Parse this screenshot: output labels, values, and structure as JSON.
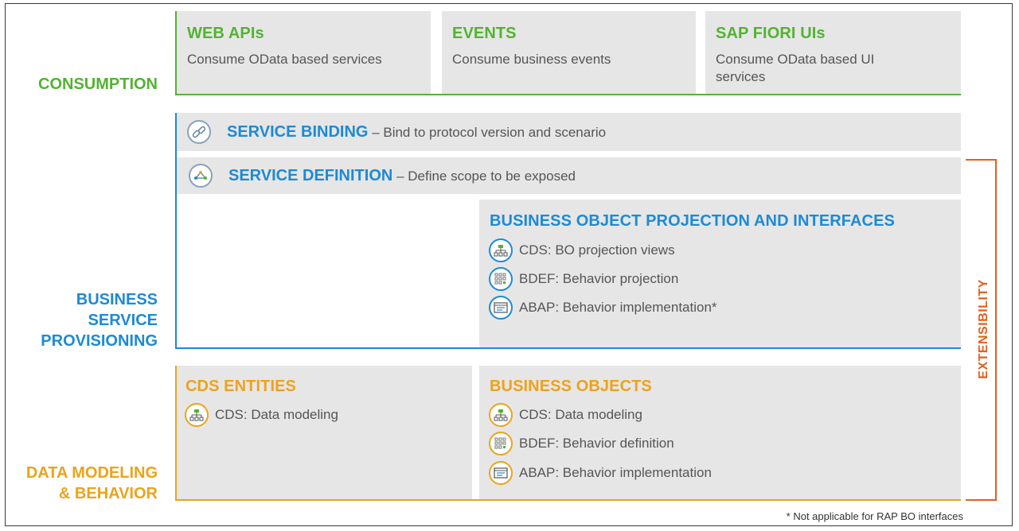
{
  "consumption": {
    "label": "CONSUMPTION",
    "boxes": [
      {
        "title": "WEB APIs",
        "desc": "Consume OData based services"
      },
      {
        "title": "EVENTS",
        "desc": "Consume business events"
      },
      {
        "title": "SAP FIORI UIs",
        "desc": "Consume OData based UI services"
      }
    ]
  },
  "provisioning": {
    "label": "BUSINESS SERVICE PROVISIONING",
    "binding": {
      "title": "SERVICE BINDING",
      "desc": "– Bind to protocol version and scenario",
      "icon": "link-icon"
    },
    "definition": {
      "title": "SERVICE DEFINITION",
      "desc": "– Define scope to be exposed",
      "icon": "tree-icon"
    },
    "projection": {
      "title": "BUSINESS OBJECT PROJECTION AND INTERFACES",
      "items": [
        {
          "icon": "hierarchy-icon",
          "text": "CDS: BO projection views"
        },
        {
          "icon": "grid-icon",
          "text": "BDEF: Behavior projection"
        },
        {
          "icon": "code-window-icon",
          "text": "ABAP: Behavior implementation*"
        }
      ]
    }
  },
  "modeling": {
    "label_line1": "DATA MODELING",
    "label_line2": "& BEHAVIOR",
    "cds_entities": {
      "title": "CDS ENTITIES",
      "items": [
        {
          "icon": "hierarchy-icon",
          "text": "CDS: Data modeling"
        }
      ]
    },
    "business_objects": {
      "title": "BUSINESS OBJECTS",
      "items": [
        {
          "icon": "hierarchy-icon",
          "text": "CDS: Data modeling"
        },
        {
          "icon": "grid-icon",
          "text": "BDEF: Behavior definition"
        },
        {
          "icon": "code-window-icon",
          "text": "ABAP: Behavior implementation"
        }
      ]
    }
  },
  "extensibility": {
    "label": "EXTENSIBILITY"
  },
  "footnote": "* Not applicable for RAP BO interfaces",
  "colors": {
    "consumption": "#52b332",
    "provisioning": "#1d8ad3",
    "modeling": "#eca31b",
    "extensibility": "#e0611d",
    "box_bg": "#e6e6e6"
  }
}
